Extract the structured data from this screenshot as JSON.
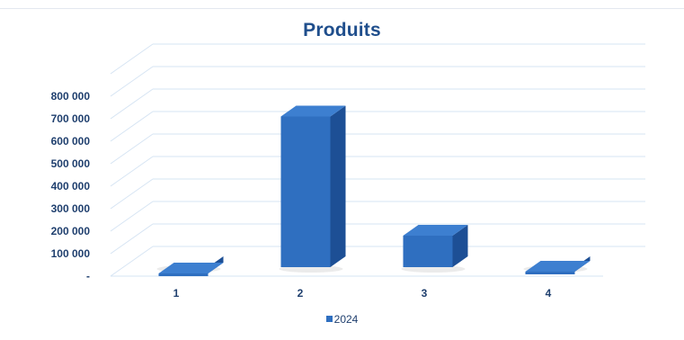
{
  "chart_data": {
    "type": "bar",
    "title": "Produits",
    "categories": [
      "1",
      "2",
      "3",
      "4"
    ],
    "series": [
      {
        "name": "2024",
        "values": [
          5000,
          710000,
          180000,
          20000
        ]
      }
    ],
    "ylim": [
      0,
      800000
    ],
    "yticks": [
      0,
      100000,
      200000,
      300000,
      400000,
      500000,
      600000,
      700000,
      800000
    ],
    "ytick_labels": [
      "-",
      "100 000",
      "200 000",
      "300 000",
      "400 000",
      "500 000",
      "600 000",
      "700 000",
      "800 000"
    ],
    "grid": true,
    "three_d": true,
    "legend_position": "bottom",
    "colors": {
      "bar_front": "#2f6fc0",
      "bar_top": "#3d7fd0",
      "bar_side": "#1d4f95",
      "grid": "#d6e4f3"
    }
  }
}
